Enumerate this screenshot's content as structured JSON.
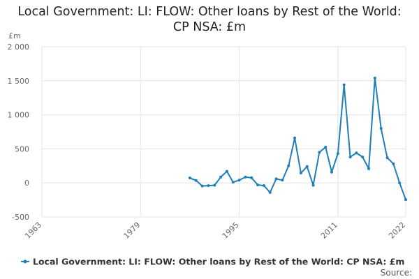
{
  "chart_data": {
    "type": "line",
    "title": "Local Government: LI: FLOW: Other loans by Rest of the World: CP NSA: £m",
    "y_label": "£m",
    "source": "Source:",
    "x": [
      1987,
      1988,
      1989,
      1990,
      1991,
      1992,
      1993,
      1994,
      1995,
      1996,
      1997,
      1998,
      1999,
      2000,
      2001,
      2002,
      2003,
      2004,
      2005,
      2006,
      2007,
      2008,
      2009,
      2010,
      2011,
      2012,
      2013,
      2014,
      2015,
      2016,
      2017,
      2018,
      2019,
      2020,
      2021,
      2022
    ],
    "series": [
      {
        "name": "Local Government: LI: FLOW: Other loans by Rest of the World: CP NSA: £m",
        "color": "#1f7fb8",
        "values": [
          72,
          35,
          -45,
          -40,
          -35,
          85,
          170,
          10,
          40,
          85,
          75,
          -30,
          -40,
          -140,
          60,
          40,
          250,
          660,
          145,
          240,
          -35,
          450,
          525,
          160,
          430,
          1440,
          380,
          440,
          380,
          210,
          1540,
          800,
          370,
          280,
          0,
          -245
        ]
      }
    ],
    "xlim": [
      1963,
      2022
    ],
    "xticks": [
      1963,
      1979,
      1995,
      2011,
      2022
    ],
    "ylim": [
      -500,
      2000
    ],
    "yticks": [
      {
        "value": 2000,
        "label": "2 000"
      },
      {
        "value": 1500,
        "label": "1 500"
      },
      {
        "value": 1000,
        "label": "1 000"
      },
      500,
      0,
      -500
    ],
    "grid": true
  }
}
